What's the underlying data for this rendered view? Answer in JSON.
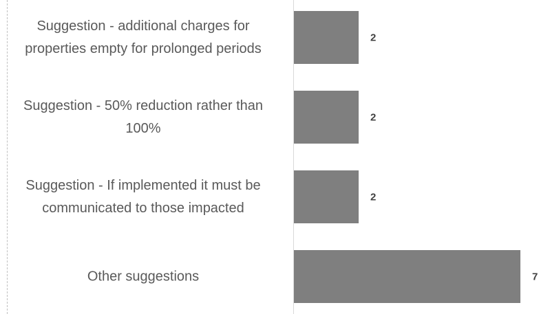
{
  "chart_data": {
    "type": "bar",
    "orientation": "horizontal",
    "categories": [
      "Suggestion - additional charges for properties empty for prolonged periods",
      "Suggestion - 50% reduction rather than 100%",
      "Suggestion - If implemented it must be communicated to those impacted",
      "Other suggestions"
    ],
    "values": [
      2,
      2,
      2,
      7
    ],
    "color": "#7f7f7f",
    "xlim": [
      0,
      7
    ]
  }
}
